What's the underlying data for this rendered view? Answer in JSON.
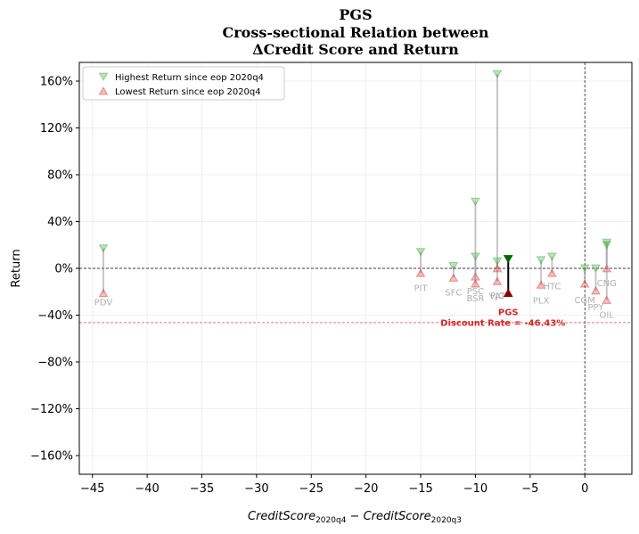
{
  "chart_data": {
    "type": "scatter",
    "title": [
      "PGS",
      "Cross-sectional Relation between",
      "ΔCredit Score and Return"
    ],
    "xlabel": "CreditScore_2020q4 − CreditScore_2020q3",
    "ylabel": "Return",
    "xlim": [
      -46.2,
      4.3
    ],
    "ylim": [
      -176,
      176
    ],
    "x_ticks": [
      -45,
      -40,
      -35,
      -30,
      -25,
      -20,
      -15,
      -10,
      -5,
      0
    ],
    "x_tick_labels": [
      "−45",
      "−40",
      "−35",
      "−30",
      "−25",
      "−20",
      "−15",
      "−10",
      "−5",
      "0"
    ],
    "y_ticks": [
      -160,
      -120,
      -80,
      -40,
      0,
      40,
      80,
      120,
      160
    ],
    "y_tick_labels": [
      "−160%",
      "−120%",
      "−80%",
      "−40%",
      "0%",
      "40%",
      "80%",
      "120%",
      "160%"
    ],
    "grid": true,
    "legend_position": "top-left",
    "legend": [
      "Highest Return since eop 2020q4",
      "Lowest Return since eop 2020q4"
    ],
    "discount_rate": -46.43,
    "highlight": {
      "label": "PGS",
      "x": -7,
      "high": 8,
      "low": -21,
      "note": "Discount Rate = -46.43%"
    },
    "points": [
      {
        "label": "PDV",
        "x": -44,
        "high": 17,
        "low": -21
      },
      {
        "label": "PIT",
        "x": -15,
        "high": 14,
        "low": -4
      },
      {
        "label": "SFC",
        "x": -12,
        "high": 2,
        "low": -8
      },
      {
        "label": "PSC",
        "x": -10,
        "high": 10,
        "low": -7
      },
      {
        "label": "BSR",
        "x": -10,
        "high": 57,
        "low": -13
      },
      {
        "label": "VAT",
        "x": -8,
        "high": 166,
        "low": -11
      },
      {
        "label": "PJC",
        "x": -8,
        "high": 6,
        "low": 0
      },
      {
        "label": "PLX",
        "x": -4,
        "high": 7,
        "low": -14
      },
      {
        "label": "HTC",
        "x": -3,
        "high": 10,
        "low": -4
      },
      {
        "label": "CGM",
        "x": 0,
        "high": 0,
        "low": -13
      },
      {
        "label": "PPY",
        "x": 1,
        "high": 0,
        "low": -19
      },
      {
        "label": "CNG",
        "x": 2,
        "high": 22,
        "low": 0
      },
      {
        "label": "OIL",
        "x": 2,
        "high": 20,
        "low": -27
      }
    ],
    "colors": {
      "high": "#2ca02c",
      "low": "#d62728",
      "line": "#999999",
      "highlight_line": "#000000",
      "highlight_high": "#006400",
      "highlight_low": "#8b0000"
    }
  }
}
